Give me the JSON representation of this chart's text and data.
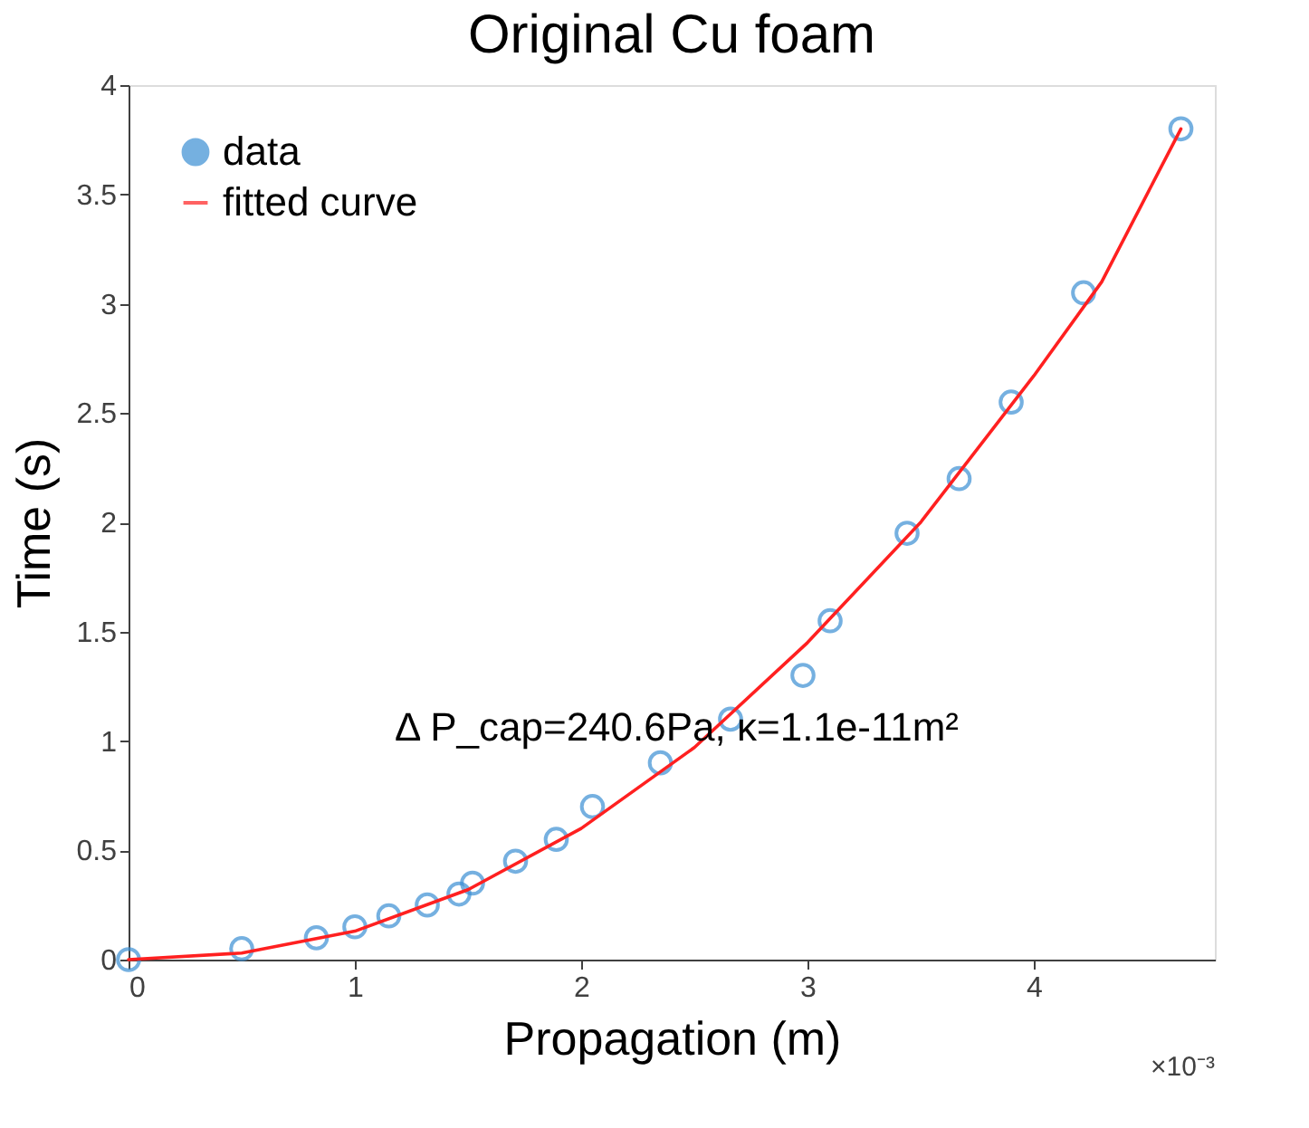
{
  "chart_data": {
    "type": "scatter",
    "title": "Original Cu foam",
    "xlabel": "Propagation (m)",
    "ylabel": "Time (s)",
    "xlim": [
      0,
      4.8
    ],
    "xticks": [
      0,
      1,
      2,
      3,
      4
    ],
    "ylim": [
      0,
      4
    ],
    "yticks": [
      0,
      0.5,
      1,
      1.5,
      2,
      2.5,
      3,
      3.5,
      4
    ],
    "grid": false,
    "legend": "top left",
    "marker": "circle",
    "annotations": [
      "Δ P_cap=240.6Pa, κ=1.1e-11m²",
      "×10⁻³"
    ],
    "series": [
      {
        "name": "data",
        "color": "#3b8fd4",
        "x": [
          0,
          0.5,
          0.83,
          1.0,
          1.15,
          1.32,
          1.46,
          1.52,
          1.71,
          1.89,
          2.05,
          2.35,
          2.66,
          2.98,
          3.1,
          3.44,
          3.67,
          3.9,
          4.22,
          4.65
        ],
        "values": [
          0,
          0.05,
          0.1,
          0.15,
          0.2,
          0.25,
          0.3,
          0.35,
          0.45,
          0.55,
          0.7,
          0.9,
          1.1,
          1.3,
          1.55,
          1.95,
          2.2,
          2.55,
          3.05,
          3.8
        ]
      },
      {
        "name": "fitted curve",
        "type": "line",
        "marker": "none",
        "color": "#ff2020",
        "line_style": "solid",
        "x": [
          0,
          0.5,
          1,
          1.5,
          2,
          2.5,
          3,
          3.5,
          4,
          4.3,
          4.65
        ],
        "values": [
          0,
          0.03,
          0.13,
          0.32,
          0.6,
          0.97,
          1.45,
          2.0,
          2.67,
          3.1,
          3.8
        ]
      }
    ]
  }
}
